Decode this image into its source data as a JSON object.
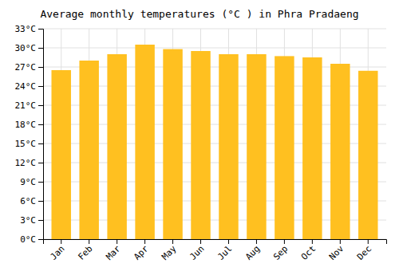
{
  "chart_data": {
    "type": "bar",
    "title": "Average monthly temperatures (°C ) in Phra Pradaeng",
    "categories": [
      "Jan",
      "Feb",
      "Mar",
      "Apr",
      "May",
      "Jun",
      "Jul",
      "Aug",
      "Sep",
      "Oct",
      "Nov",
      "Dec"
    ],
    "values": [
      26.5,
      28.0,
      29.0,
      30.5,
      29.8,
      29.5,
      29.0,
      29.0,
      28.7,
      28.5,
      27.5,
      26.4
    ],
    "color": "#FFC020",
    "ylim": [
      0,
      33
    ],
    "yticks": [
      {
        "value": 0,
        "label": "0°C"
      },
      {
        "value": 3,
        "label": "3°C"
      },
      {
        "value": 6,
        "label": "6°C"
      },
      {
        "value": 9,
        "label": "9°C"
      },
      {
        "value": 12,
        "label": "12°C"
      },
      {
        "value": 15,
        "label": "15°C"
      },
      {
        "value": 18,
        "label": "18°C"
      },
      {
        "value": 21,
        "label": "21°C"
      },
      {
        "value": 24,
        "label": "24°C"
      },
      {
        "value": 27,
        "label": "27°C"
      },
      {
        "value": 30,
        "label": "30°C"
      },
      {
        "value": 33,
        "label": "33°C"
      }
    ],
    "grid": true
  }
}
